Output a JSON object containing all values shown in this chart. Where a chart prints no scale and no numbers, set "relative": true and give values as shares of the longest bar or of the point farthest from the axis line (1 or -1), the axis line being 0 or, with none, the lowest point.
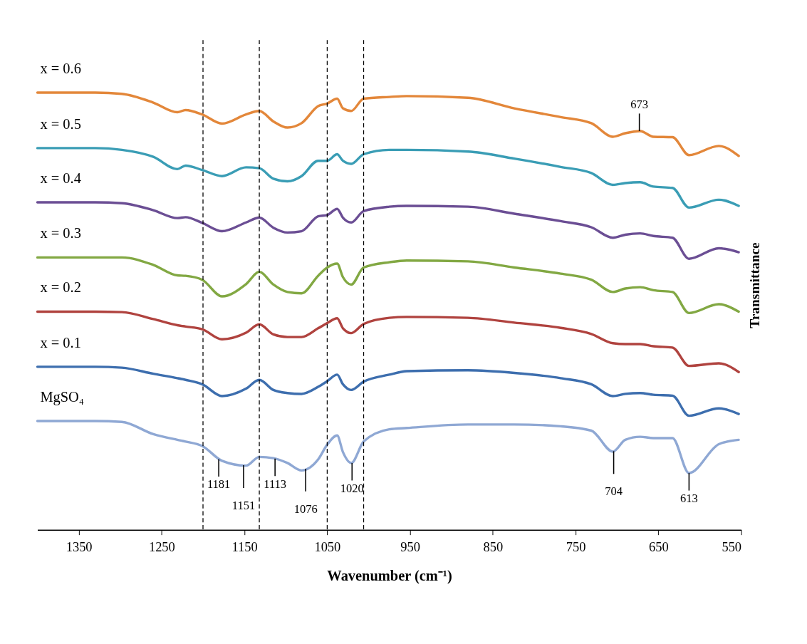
{
  "chart_data": {
    "type": "line",
    "relative": true,
    "xlabel": "Wavenumber (cm⁻¹)",
    "ylabel": "Transmittance",
    "x": [
      1400,
      1330,
      1298,
      1260,
      1231,
      1221,
      1201,
      1177,
      1148,
      1132,
      1115,
      1098,
      1081,
      1061,
      1050,
      1038,
      1031,
      1021,
      1006,
      975,
      954,
      880,
      824,
      768,
      731,
      705,
      690,
      672,
      656,
      633,
      613,
      577,
      553
    ],
    "xlim": [
      1400,
      550
    ],
    "xticks": [
      1350,
      1250,
      1150,
      1050,
      950,
      850,
      750,
      650,
      550
    ],
    "grid": false,
    "line_style": "solid",
    "series": [
      {
        "name": "x = 0.6",
        "color": "#e3873a",
        "values": [
          1.0,
          1.0,
          0.997,
          0.977,
          0.955,
          0.96,
          0.95,
          0.929,
          0.95,
          0.958,
          0.934,
          0.92,
          0.93,
          0.969,
          0.975,
          0.986,
          0.964,
          0.958,
          0.986,
          0.99,
          0.992,
          0.988,
          0.964,
          0.944,
          0.93,
          0.899,
          0.907,
          0.912,
          0.899,
          0.898,
          0.857,
          0.878,
          0.855
        ]
      },
      {
        "name": "x = 0.5",
        "color": "#3a9db5",
        "values": [
          0.873,
          0.873,
          0.869,
          0.853,
          0.825,
          0.833,
          0.823,
          0.809,
          0.829,
          0.827,
          0.803,
          0.797,
          0.809,
          0.844,
          0.844,
          0.859,
          0.844,
          0.837,
          0.859,
          0.869,
          0.869,
          0.865,
          0.849,
          0.83,
          0.816,
          0.789,
          0.793,
          0.795,
          0.785,
          0.782,
          0.737,
          0.755,
          0.741
        ]
      },
      {
        "name": "x = 0.4",
        "color": "#6b4e94",
        "values": [
          0.749,
          0.749,
          0.747,
          0.731,
          0.713,
          0.715,
          0.702,
          0.683,
          0.703,
          0.714,
          0.691,
          0.68,
          0.683,
          0.717,
          0.72,
          0.734,
          0.714,
          0.703,
          0.729,
          0.739,
          0.741,
          0.739,
          0.723,
          0.706,
          0.692,
          0.668,
          0.675,
          0.678,
          0.672,
          0.668,
          0.62,
          0.644,
          0.635
        ]
      },
      {
        "name": "x = 0.3",
        "color": "#82a843",
        "values": [
          0.623,
          0.623,
          0.623,
          0.606,
          0.582,
          0.581,
          0.572,
          0.534,
          0.562,
          0.59,
          0.561,
          0.544,
          0.541,
          0.581,
          0.6,
          0.609,
          0.578,
          0.561,
          0.6,
          0.612,
          0.616,
          0.614,
          0.6,
          0.586,
          0.572,
          0.544,
          0.552,
          0.555,
          0.548,
          0.544,
          0.496,
          0.516,
          0.499
        ]
      },
      {
        "name": "x = 0.2",
        "color": "#b0433f",
        "values": [
          0.499,
          0.499,
          0.498,
          0.482,
          0.468,
          0.465,
          0.459,
          0.436,
          0.451,
          0.47,
          0.447,
          0.441,
          0.441,
          0.461,
          0.473,
          0.484,
          0.461,
          0.45,
          0.471,
          0.485,
          0.487,
          0.485,
          0.474,
          0.462,
          0.448,
          0.427,
          0.425,
          0.425,
          0.42,
          0.417,
          0.375,
          0.381,
          0.361
        ]
      },
      {
        "name": "x = 0.1",
        "color": "#3d6eae",
        "values": [
          0.373,
          0.373,
          0.371,
          0.357,
          0.347,
          0.343,
          0.333,
          0.306,
          0.323,
          0.343,
          0.32,
          0.313,
          0.311,
          0.327,
          0.34,
          0.355,
          0.333,
          0.32,
          0.339,
          0.355,
          0.363,
          0.365,
          0.359,
          0.347,
          0.333,
          0.306,
          0.311,
          0.313,
          0.309,
          0.307,
          0.261,
          0.278,
          0.265
        ]
      },
      {
        "name": "MgSO₄",
        "color": "#8fa8d4",
        "values": [
          0.249,
          0.249,
          0.247,
          0.219,
          0.206,
          0.202,
          0.192,
          0.158,
          0.147,
          0.167,
          0.164,
          0.153,
          0.136,
          0.161,
          0.195,
          0.216,
          0.178,
          0.153,
          0.202,
          0.23,
          0.233,
          0.241,
          0.241,
          0.237,
          0.227,
          0.179,
          0.206,
          0.213,
          0.21,
          0.21,
          0.13,
          0.196,
          0.206
        ]
      }
    ],
    "ref_lines": [
      {
        "axis": "x",
        "value": 1200,
        "color": "#000000",
        "line_style": "dashed"
      },
      {
        "axis": "x",
        "value": 1132,
        "color": "#000000",
        "line_style": "dashed"
      },
      {
        "axis": "x",
        "value": 1050,
        "color": "#000000",
        "line_style": "dashed"
      },
      {
        "axis": "x",
        "value": 1006,
        "color": "#000000",
        "line_style": "dashed"
      }
    ],
    "annotations": [
      {
        "text": "1181",
        "x": 1181,
        "y": 0.162
      },
      {
        "text": "1151",
        "x": 1151,
        "y": 0.148
      },
      {
        "text": "1113",
        "x": 1113,
        "y": 0.163
      },
      {
        "text": "1076",
        "x": 1076,
        "y": 0.14
      },
      {
        "text": "1020",
        "x": 1020,
        "y": 0.153
      },
      {
        "text": "704",
        "x": 704,
        "y": 0.18
      },
      {
        "text": "613",
        "x": 613,
        "y": 0.13
      },
      {
        "text": "673",
        "x": 673,
        "y": 0.912
      }
    ]
  }
}
